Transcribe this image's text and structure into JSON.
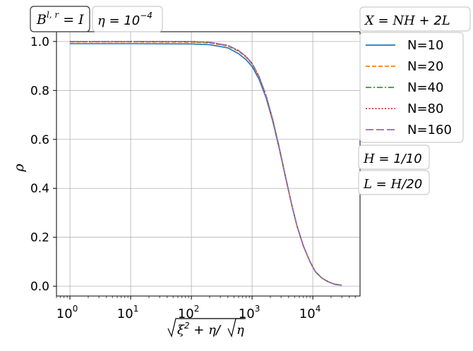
{
  "chart_data": {
    "type": "line",
    "xscale": "log",
    "xlim": [
      0.6,
      60000
    ],
    "ylim": [
      -0.04,
      1.04
    ],
    "grid": true,
    "xticks": [
      1,
      10,
      100,
      1000,
      10000
    ],
    "xtick_labels": [
      {
        "base": "10",
        "exp": "0"
      },
      {
        "base": "10",
        "exp": "1"
      },
      {
        "base": "10",
        "exp": "2"
      },
      {
        "base": "10",
        "exp": "3"
      },
      {
        "base": "10",
        "exp": "4"
      }
    ],
    "yticks": [
      0.0,
      0.2,
      0.4,
      0.6,
      0.8,
      1.0
    ],
    "ytick_labels": [
      "0.0",
      "0.2",
      "0.4",
      "0.6",
      "0.8",
      "1.0"
    ],
    "ylabel": "ρ",
    "xlabel": "√(ξ² + η)/√η",
    "legend_title": "X = NH + 2L",
    "legend_position": "right",
    "x": [
      1,
      10,
      100,
      200,
      400,
      600,
      800,
      1000,
      1300,
      1700,
      2200,
      2800,
      3500,
      4500,
      5500,
      7000,
      9000,
      11000,
      14000,
      18000,
      23000,
      30000
    ],
    "series": [
      {
        "name": "N=10",
        "color": "#1f77b4",
        "dash": "solid",
        "values": [
          0.991,
          0.991,
          0.99,
          0.987,
          0.974,
          0.95,
          0.925,
          0.898,
          0.846,
          0.77,
          0.672,
          0.562,
          0.452,
          0.332,
          0.245,
          0.164,
          0.1,
          0.06,
          0.034,
          0.018,
          0.008,
          0.004
        ]
      },
      {
        "name": "N=20",
        "color": "#ff7f0e",
        "dash": "dashed",
        "values": [
          0.998,
          0.998,
          0.997,
          0.994,
          0.981,
          0.96,
          0.935,
          0.908,
          0.855,
          0.777,
          0.677,
          0.566,
          0.455,
          0.333,
          0.246,
          0.164,
          0.1,
          0.06,
          0.034,
          0.018,
          0.008,
          0.004
        ]
      },
      {
        "name": "N=40",
        "color": "#2ca02c",
        "dash": "dashdot",
        "values": [
          1.0,
          1.0,
          0.999,
          0.996,
          0.983,
          0.962,
          0.937,
          0.91,
          0.857,
          0.779,
          0.678,
          0.567,
          0.455,
          0.333,
          0.246,
          0.164,
          0.1,
          0.06,
          0.034,
          0.018,
          0.008,
          0.004
        ]
      },
      {
        "name": "N=80",
        "color": "#d62728",
        "dash": "dotted",
        "values": [
          1.0,
          1.0,
          1.0,
          0.997,
          0.984,
          0.963,
          0.938,
          0.911,
          0.858,
          0.779,
          0.679,
          0.567,
          0.455,
          0.333,
          0.246,
          0.164,
          0.1,
          0.06,
          0.034,
          0.018,
          0.008,
          0.004
        ]
      },
      {
        "name": "N=160",
        "color": "#9467bd",
        "dash": "longdash",
        "values": [
          1.0,
          1.0,
          1.0,
          0.997,
          0.984,
          0.963,
          0.938,
          0.911,
          0.858,
          0.779,
          0.679,
          0.567,
          0.455,
          0.333,
          0.246,
          0.164,
          0.1,
          0.06,
          0.034,
          0.018,
          0.008,
          0.004
        ]
      }
    ],
    "annotations": [
      {
        "id": "boundary",
        "lhs": "B",
        "sup": "l, r",
        "rhs": "I"
      },
      {
        "id": "eta",
        "lhs": "η",
        "rhs_base": "10",
        "rhs_exp": "−4"
      },
      {
        "id": "h",
        "text": "H = 1/10"
      },
      {
        "id": "l",
        "text": "L = H/20"
      }
    ]
  }
}
